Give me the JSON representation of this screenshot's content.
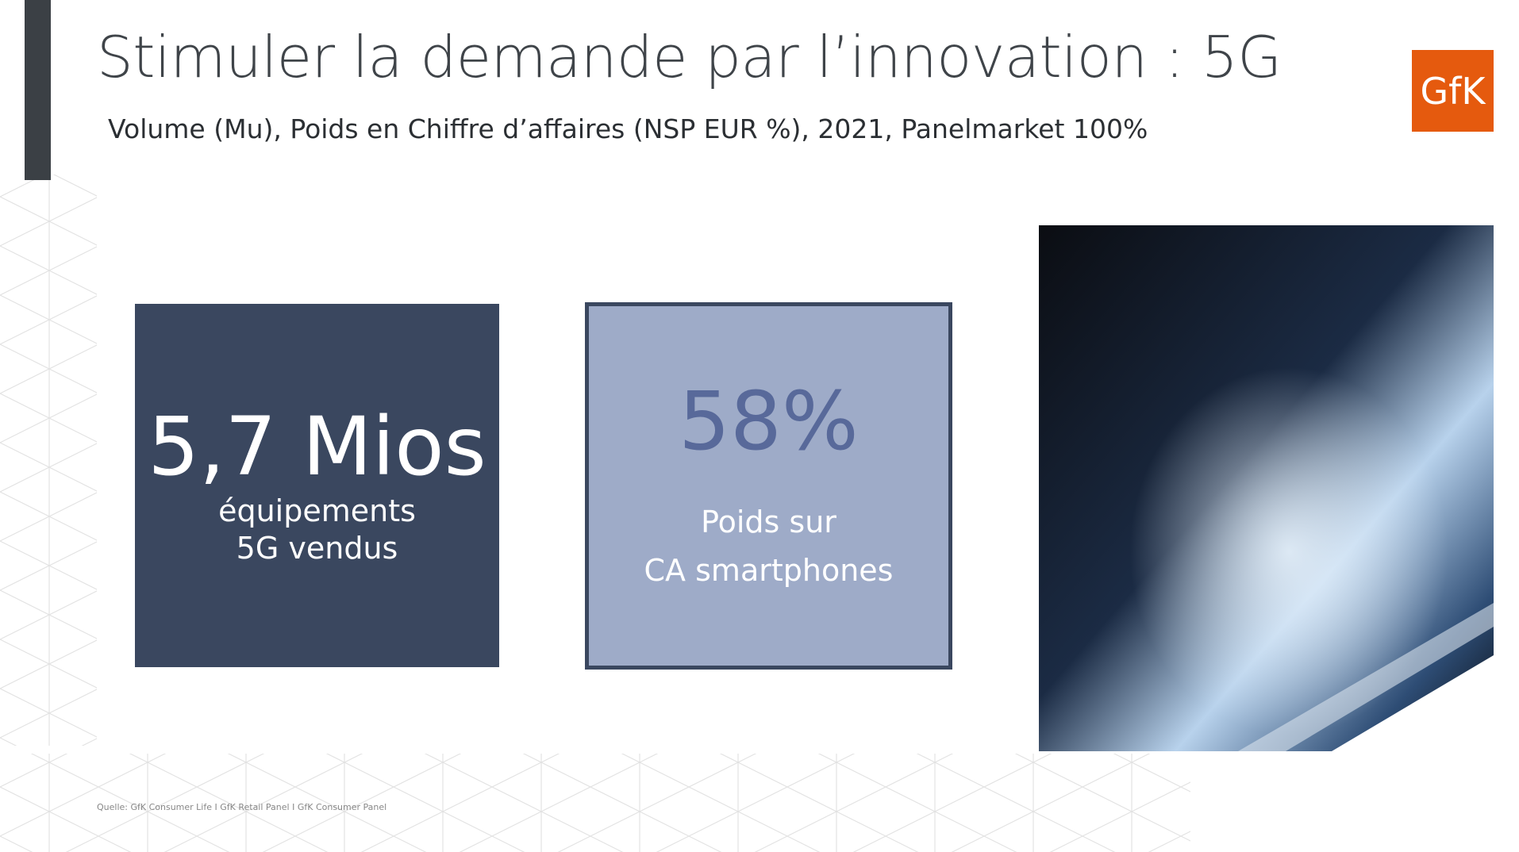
{
  "header": {
    "title": "Stimuler la demande par l’innovation : 5G",
    "subtitle": "Volume (Mu), Poids en Chiffre d’affaires (NSP EUR %), 2021, Panelmarket 100%"
  },
  "logo": "GfK",
  "cards": [
    {
      "value": "5,7 Mios",
      "caption": [
        "équipements",
        "5G vendus"
      ]
    },
    {
      "value": "58%",
      "caption": [
        "Poids sur",
        "CA smartphones"
      ]
    }
  ],
  "footer": {
    "source": "Quelle: GfK Consumer Life I GfK Retail Panel I GfK Consumer Panel"
  }
}
